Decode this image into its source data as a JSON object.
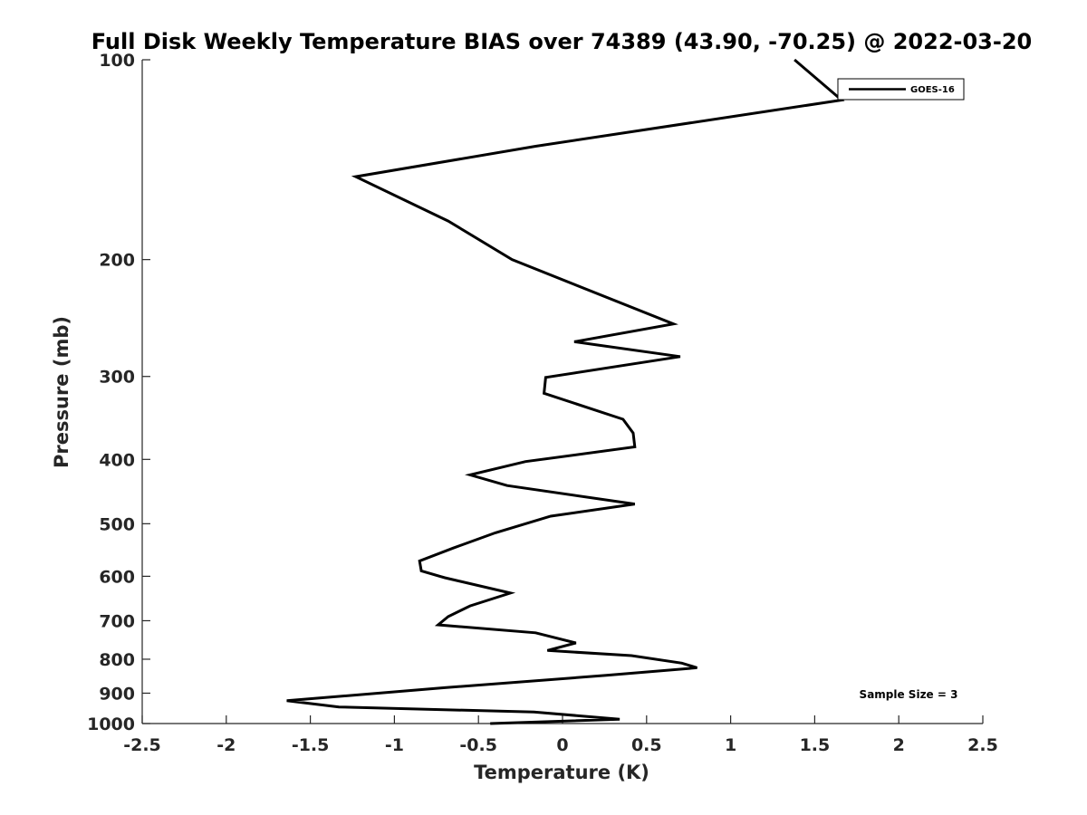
{
  "chart_data": {
    "type": "line",
    "title": "Full Disk Weekly Temperature BIAS over 74389 (43.90, -70.25) @ 2022-03-20",
    "xlabel": "Temperature (K)",
    "ylabel": "Pressure (mb)",
    "xlim": [
      -2.5,
      2.5
    ],
    "ylim": [
      1000,
      100
    ],
    "y_scale": "log",
    "grid": false,
    "legend_position": "top-right",
    "x_ticks": [
      -2.5,
      -2,
      -1.5,
      -1,
      -0.5,
      0,
      0.5,
      1,
      1.5,
      2,
      2.5
    ],
    "x_tick_labels": [
      "-2.5",
      "-2",
      "-1.5",
      "-1",
      "-0.5",
      "0",
      "0.5",
      "1",
      "1.5",
      "2",
      "2.5"
    ],
    "y_ticks": [
      100,
      200,
      300,
      400,
      500,
      600,
      700,
      800,
      900,
      1000
    ],
    "y_tick_labels": [
      "100",
      "200",
      "300",
      "400",
      "500",
      "600",
      "700",
      "800",
      "900",
      "1000"
    ],
    "series": [
      {
        "name": "GOES-16",
        "color": "#000000",
        "points": [
          [
            1.38,
            100
          ],
          [
            1.66,
            115
          ],
          [
            -0.16,
            135
          ],
          [
            -1.23,
            150
          ],
          [
            -0.68,
            175
          ],
          [
            -0.3,
            200
          ],
          [
            0.66,
            250
          ],
          [
            0.07,
            266
          ],
          [
            0.7,
            280
          ],
          [
            -0.1,
            301
          ],
          [
            -0.11,
            318
          ],
          [
            0.36,
            348
          ],
          [
            0.42,
            365
          ],
          [
            0.43,
            383
          ],
          [
            -0.22,
            403
          ],
          [
            -0.55,
            422
          ],
          [
            -0.33,
            438
          ],
          [
            0.43,
            467
          ],
          [
            -0.07,
            487
          ],
          [
            -0.4,
            516
          ],
          [
            -0.65,
            544
          ],
          [
            -0.85,
            569
          ],
          [
            -0.84,
            589
          ],
          [
            -0.7,
            603
          ],
          [
            -0.31,
            636
          ],
          [
            -0.55,
            665
          ],
          [
            -0.68,
            690
          ],
          [
            -0.74,
            710
          ],
          [
            -0.16,
            730
          ],
          [
            0.08,
            756
          ],
          [
            -0.09,
            776
          ],
          [
            0.41,
            790
          ],
          [
            0.71,
            811
          ],
          [
            0.8,
            824
          ],
          [
            0.26,
            846
          ],
          [
            -0.7,
            883
          ],
          [
            -1.64,
            924
          ],
          [
            -1.33,
            944
          ],
          [
            -0.17,
            961
          ],
          [
            0.34,
            985
          ],
          [
            -0.43,
            1000
          ]
        ]
      }
    ],
    "annotations": [
      "Sample Size = 3"
    ]
  }
}
